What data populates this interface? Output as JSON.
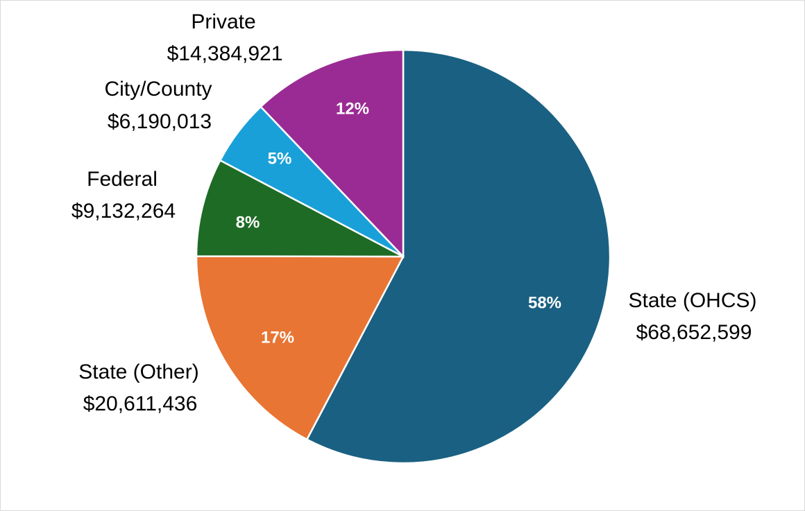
{
  "chart_data": {
    "type": "pie",
    "categories": [
      "State (OHCS)",
      "State (Other)",
      "Federal",
      "City/County",
      "Private"
    ],
    "values": [
      68652599,
      20611436,
      9132264,
      6190013,
      14384921
    ],
    "value_labels": [
      "$68,652,599",
      "$20,611,436",
      "$9,132,264",
      "$6,190,013",
      "$14,384,921"
    ],
    "percent_labels": [
      "58%",
      "17%",
      "8%",
      "5%",
      "12%"
    ],
    "colors": [
      "#1a6082",
      "#e87533",
      "#1e6b25",
      "#1aa0d8",
      "#9b2b94"
    ]
  }
}
